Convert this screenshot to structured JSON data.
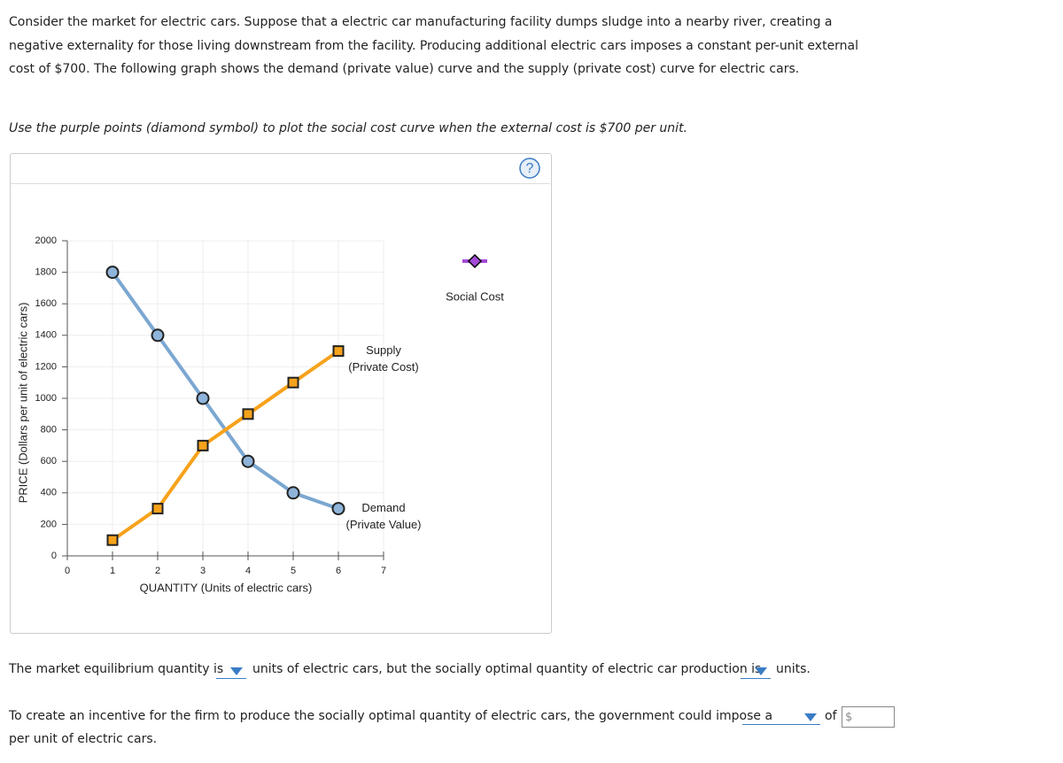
{
  "intro": "Consider the market for electric cars. Suppose that a electric car manufacturing facility dumps sludge into a nearby river, creating a negative externality for those living downstream from the facility. Producing additional electric cars imposes a constant per-unit external cost of $700. The following graph shows the demand (private value) curve and the supply (private cost) curve for electric cars.",
  "instruction": "Use the purple points (diamond symbol) to plot the social cost curve when the external cost is $700 per unit.",
  "help": "?",
  "chart_data": {
    "type": "line",
    "xlabel": "QUANTITY (Units of electric cars)",
    "ylabel": "PRICE (Dollars per unit of electric cars)",
    "xlim": [
      0,
      7
    ],
    "xticks": [
      0,
      1,
      2,
      3,
      4,
      5,
      6,
      7
    ],
    "ylim": [
      0,
      2000
    ],
    "yticks": [
      0,
      200,
      400,
      600,
      800,
      1000,
      1200,
      1400,
      1600,
      1800,
      2000
    ],
    "grid": true,
    "x": [
      1,
      2,
      3,
      4,
      5,
      6
    ],
    "series": [
      {
        "name": "Demand",
        "note": "(Private Value)",
        "color": "#7ba7d1",
        "marker": "circle",
        "values": [
          1800,
          1400,
          1000,
          600,
          400,
          300
        ]
      },
      {
        "name": "Supply",
        "note": "(Private Cost)",
        "color": "#f7a21b",
        "marker": "square",
        "values": [
          100,
          300,
          700,
          900,
          1100,
          1300
        ]
      }
    ],
    "palette": {
      "name": "Social Cost",
      "color": "#a34ad8"
    }
  },
  "q1": {
    "part1": "The market equilibrium quantity is",
    "part2": "units of electric cars, but the socially optimal quantity of electric car production is",
    "part3": "units."
  },
  "q2": {
    "part1": "To create an incentive for the firm to produce the socially optimal quantity of electric cars, the government could impose a",
    "part2": "of",
    "currency": "$",
    "part3": "per unit of electric cars."
  }
}
